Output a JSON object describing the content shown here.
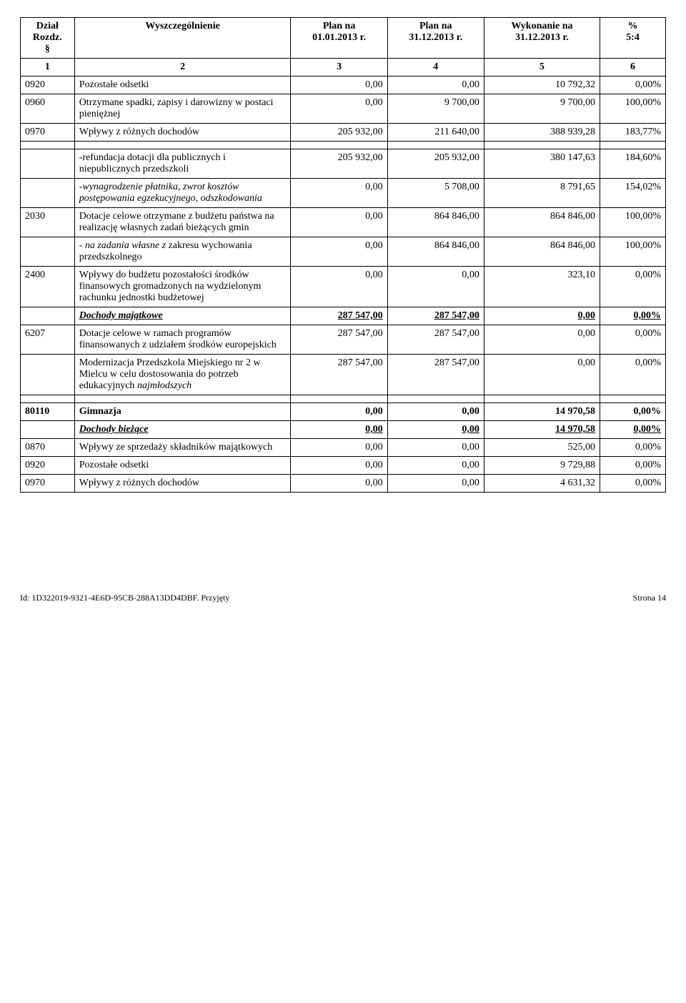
{
  "header": {
    "c1": "Dział\nRozdz.\n§",
    "c2": "Wyszczególnienie",
    "c3": "Plan na\n01.01.2013 r.",
    "c4": "Plan na\n31.12.2013 r.",
    "c5": "Wykonanie na\n31.12.2013 r.",
    "c6": "%\n5:4"
  },
  "subheader": {
    "c1": "1",
    "c2": "2",
    "c3": "3",
    "c4": "4",
    "c5": "5",
    "c6": "6"
  },
  "rows": [
    {
      "c1": "0920",
      "c2": "Pozostałe odsetki",
      "c3": "0,00",
      "c4": "0,00",
      "c5": "10 792,32",
      "c6": "0,00%"
    },
    {
      "c1": "0960",
      "c2": "Otrzymane spadki, zapisy i darowizny w postaci pieniężnej",
      "c3": "0,00",
      "c4": "9 700,00",
      "c5": "9 700,00",
      "c6": "100,00%"
    },
    {
      "c1": "0970",
      "c2": "Wpływy z różnych dochodów",
      "c3": "205 932,00",
      "c4": "211 640,00",
      "c5": "388 939,28",
      "c6": "183,77%"
    },
    {
      "c1": "",
      "c2": "-refundacja dotacji dla publicznych i niepublicznych przedszkoli",
      "c3": "205 932,00",
      "c4": "205 932,00",
      "c5": "380 147,63",
      "c6": "184,60%"
    },
    {
      "c1": "",
      "c2": "-wynagrodzenie płatnika, zwrot kosztów postępowania egzekucyjnego, odszkodowania",
      "italic2": true,
      "c3": "0,00",
      "c4": "5 708,00",
      "c5": "8 791,65",
      "c6": "154,02%"
    },
    {
      "c1": "2030",
      "c2": "Dotacje celowe otrzymane z budżetu państwa na realizację własnych zadań bieżących gmin",
      "c3": "0,00",
      "c4": "864 846,00",
      "c5": "864 846,00",
      "c6": "100,00%"
    },
    {
      "c1": "",
      "c2": " - na zadania własne z zakresu wychowania przedszkolnego",
      "italicPrefix": " - na zadania własne z",
      "plainSuffix": " zakresu wychowania przedszkolnego",
      "c3": "0,00",
      "c4": "864 846,00",
      "c5": "864 846,00",
      "c6": "100,00%"
    },
    {
      "c1": "2400",
      "c2": "Wpływy do budżetu pozostałości środków finansowych gromadzonych na wydzielonym rachunku jednostki budżetowej",
      "c3": "0,00",
      "c4": "0,00",
      "c5": "323,10",
      "c6": "0,00%"
    },
    {
      "c1": "",
      "c2": "Dochody majątkowe",
      "bold": true,
      "italic2": true,
      "underline2": true,
      "c3": "287 547,00",
      "c4": "287 547,00",
      "c5": "0,00",
      "c6": "0,00%"
    },
    {
      "c1": "6207",
      "c2": "Dotacje celowe w ramach programów finansowanych z udziałem środków europejskich",
      "c3": "287 547,00",
      "c4": "287 547,00",
      "c5": "0,00",
      "c6": "0,00%"
    },
    {
      "c1": "",
      "c2": "Modernizacja Przedszkola Miejskiego nr 2 w Mielcu w celu dostosowania do potrzeb edukacyjnych najmłodszych",
      "italicLast": "najmłodszych",
      "c3": "287 547,00",
      "c4": "287 547,00",
      "c5": "0,00",
      "c6": "0,00%"
    }
  ],
  "section2": {
    "heading": {
      "c1": "80110",
      "c2": "Gimnazja",
      "c3": "0,00",
      "c4": "0,00",
      "c5": "14 970,58",
      "c6": "0,00%"
    },
    "sub": {
      "c1": "",
      "c2": "Dochody bieżące",
      "c3": "0,00",
      "c4": "0,00",
      "c5": "14 970,58",
      "c6": "0,00%"
    },
    "rows": [
      {
        "c1": "0870",
        "c2": "Wpływy ze sprzedaży składników majątkowych",
        "c3": "0,00",
        "c4": "0,00",
        "c5": "525,00",
        "c6": "0,00%"
      },
      {
        "c1": "0920",
        "c2": "Pozostałe odsetki",
        "c3": "0,00",
        "c4": "0,00",
        "c5": "9 729,88",
        "c6": "0,00%"
      },
      {
        "c1": "0970",
        "c2": "Wpływy z różnych dochodów",
        "c3": "0,00",
        "c4": "0,00",
        "c5": "4 631,32",
        "c6": "0,00%"
      }
    ]
  },
  "footer": {
    "left": "Id: 1D322019-9321-4E6D-95CB-288A13DD4DBF. Przyjęty",
    "right": "Strona 14"
  }
}
